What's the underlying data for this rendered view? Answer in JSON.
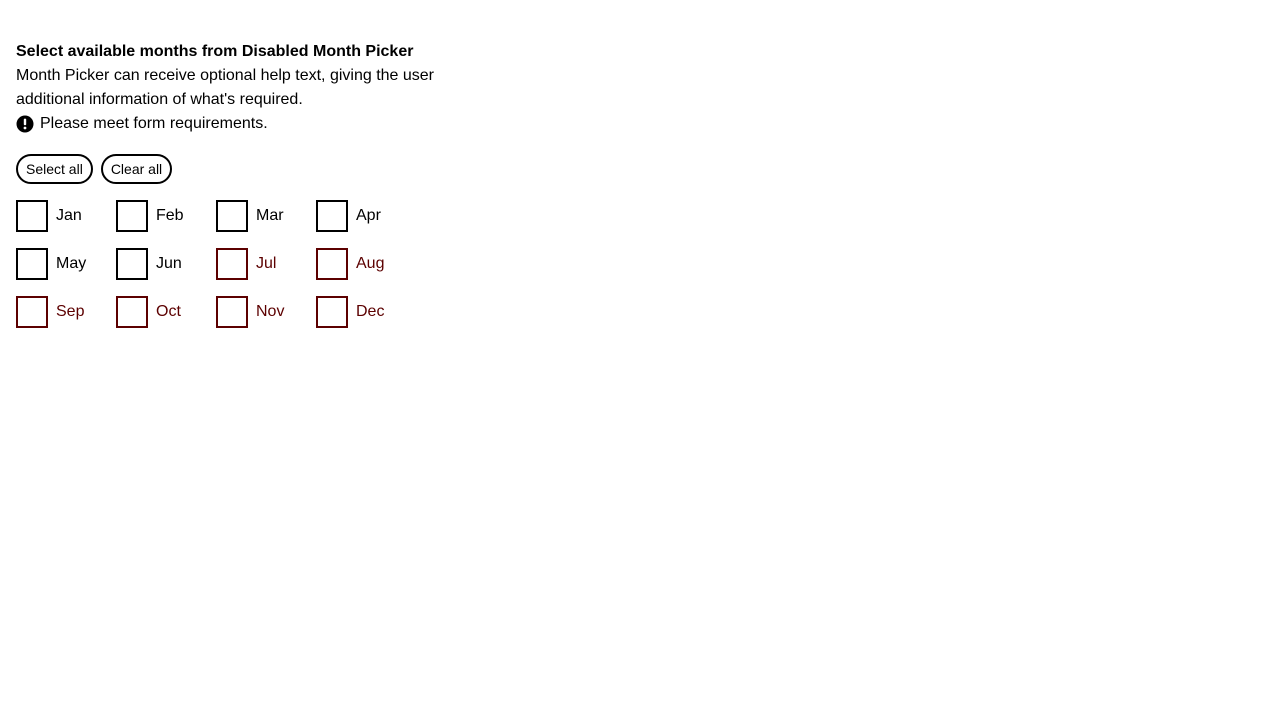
{
  "form": {
    "title": "Select available months from Disabled Month Picker",
    "help_text": "Month Picker can receive optional help text, giving the user additional information of what's required.",
    "error_text": "Please meet form requirements.",
    "error_icon": "exclamation-circle-icon"
  },
  "actions": {
    "select_all_label": "Select all",
    "clear_all_label": "Clear all"
  },
  "colors": {
    "enabled": "#000000",
    "disabled": "#5c0000"
  },
  "months": [
    {
      "label": "Jan",
      "checked": false,
      "disabled": false
    },
    {
      "label": "Feb",
      "checked": false,
      "disabled": false
    },
    {
      "label": "Mar",
      "checked": false,
      "disabled": false
    },
    {
      "label": "Apr",
      "checked": false,
      "disabled": false
    },
    {
      "label": "May",
      "checked": false,
      "disabled": false
    },
    {
      "label": "Jun",
      "checked": false,
      "disabled": false
    },
    {
      "label": "Jul",
      "checked": false,
      "disabled": true
    },
    {
      "label": "Aug",
      "checked": false,
      "disabled": true
    },
    {
      "label": "Sep",
      "checked": false,
      "disabled": true
    },
    {
      "label": "Oct",
      "checked": false,
      "disabled": true
    },
    {
      "label": "Nov",
      "checked": false,
      "disabled": true
    },
    {
      "label": "Dec",
      "checked": false,
      "disabled": true
    }
  ]
}
